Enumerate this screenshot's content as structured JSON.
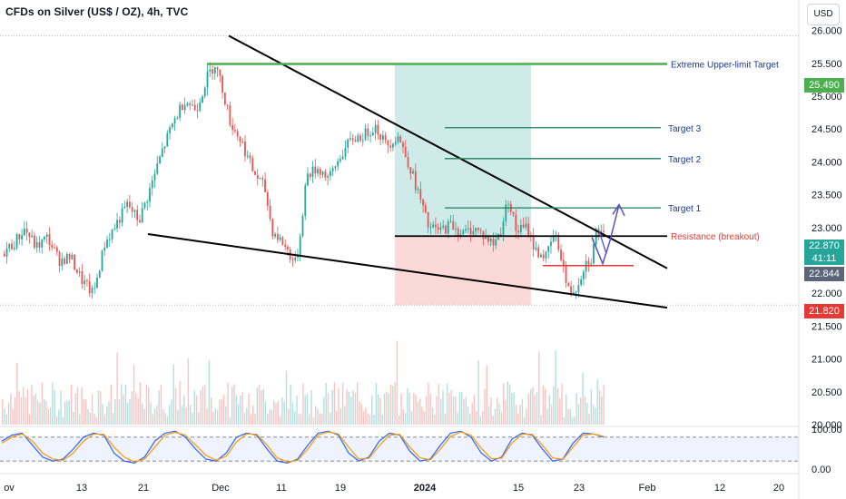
{
  "header": {
    "title": "CFDs on Silver (US$ / OZ), 4h, TVC",
    "currency_button": "USD"
  },
  "colors": {
    "up": "#26a69a",
    "down": "#ef5350",
    "green_line": "#4caf50",
    "target_line": "#1b7f5a",
    "resistance": "#e53935",
    "arrow": "#5b4fc4",
    "oscillator_k": "#2962ff",
    "oscillator_d": "#ff9800"
  },
  "price_badges": {
    "extreme_target": "25.490",
    "current_price": "22.870",
    "countdown": "41:11",
    "current_alt": "22.844",
    "low_marker": "21.820"
  },
  "chart_data": [
    {
      "type": "candlestick",
      "title": "CFDs on Silver (US$ / OZ), 4h, TVC",
      "yaxis": {
        "ticks": [
          "26.000",
          "25.500",
          "25.000",
          "24.500",
          "24.000",
          "23.500",
          "23.000",
          "22.500",
          "22.000",
          "21.500",
          "21.000",
          "20.500",
          "20.000"
        ],
        "range": [
          20.0,
          26.05
        ]
      },
      "xaxis": {
        "ticks": [
          "ov",
          "13",
          "21",
          "Dec",
          "11",
          "19",
          "2024",
          "15",
          "23",
          "Feb",
          "12",
          "20"
        ]
      },
      "price_path": [
        [
          0,
          22.6
        ],
        [
          0.015,
          22.75
        ],
        [
          0.03,
          22.98
        ],
        [
          0.045,
          22.7
        ],
        [
          0.06,
          22.85
        ],
        [
          0.075,
          22.5
        ],
        [
          0.09,
          22.55
        ],
        [
          0.105,
          22.2
        ],
        [
          0.12,
          21.98
        ],
        [
          0.135,
          22.75
        ],
        [
          0.15,
          23.05
        ],
        [
          0.165,
          23.35
        ],
        [
          0.18,
          23.1
        ],
        [
          0.195,
          23.6
        ],
        [
          0.21,
          24.15
        ],
        [
          0.225,
          24.6
        ],
        [
          0.24,
          24.95
        ],
        [
          0.255,
          24.8
        ],
        [
          0.27,
          25.3
        ],
        [
          0.28,
          25.5
        ],
        [
          0.29,
          25.1
        ],
        [
          0.3,
          24.6
        ],
        [
          0.315,
          24.3
        ],
        [
          0.33,
          23.85
        ],
        [
          0.345,
          23.6
        ],
        [
          0.355,
          22.95
        ],
        [
          0.37,
          22.75
        ],
        [
          0.385,
          22.45
        ],
        [
          0.39,
          22.7
        ],
        [
          0.4,
          23.8
        ],
        [
          0.415,
          23.9
        ],
        [
          0.43,
          23.75
        ],
        [
          0.445,
          24.1
        ],
        [
          0.46,
          24.35
        ],
        [
          0.475,
          24.4
        ],
        [
          0.49,
          24.55
        ],
        [
          0.505,
          24.25
        ],
        [
          0.52,
          24.4
        ],
        [
          0.535,
          23.95
        ],
        [
          0.55,
          23.4
        ],
        [
          0.56,
          23.0
        ],
        [
          0.575,
          22.95
        ],
        [
          0.59,
          23.05
        ],
        [
          0.605,
          22.9
        ],
        [
          0.62,
          23.0
        ],
        [
          0.635,
          22.85
        ],
        [
          0.645,
          22.75
        ],
        [
          0.655,
          22.95
        ],
        [
          0.665,
          23.45
        ],
        [
          0.675,
          22.95
        ],
        [
          0.69,
          23.0
        ],
        [
          0.7,
          22.65
        ],
        [
          0.715,
          22.55
        ],
        [
          0.725,
          22.9
        ],
        [
          0.735,
          22.55
        ],
        [
          0.74,
          22.2
        ],
        [
          0.745,
          22.0
        ],
        [
          0.755,
          22.1
        ],
        [
          0.765,
          22.45
        ],
        [
          0.775,
          22.55
        ],
        [
          0.78,
          22.95
        ],
        [
          0.79,
          22.85
        ]
      ],
      "annotations": [
        {
          "label": "Extreme Upper-limit Target",
          "value": 25.49
        },
        {
          "label": "Target 3",
          "value": 24.52
        },
        {
          "label": "Target 2",
          "value": 24.05
        },
        {
          "label": "Target 1",
          "value": 23.3
        },
        {
          "label": "Resistance (breakout)",
          "value": 22.87
        }
      ],
      "trade_zone": {
        "entry": 22.87,
        "target": 25.49,
        "stop": 21.82
      },
      "volume_note": "volume bars shown at bottom of price pane"
    },
    {
      "type": "line",
      "title": "Stochastic oscillator",
      "yaxis": {
        "ticks": [
          "100.00",
          "0.00"
        ],
        "range": [
          0,
          100
        ]
      },
      "bands": [
        80,
        20
      ],
      "series": [
        {
          "values": [
            70,
            85,
            90,
            60,
            30,
            20,
            25,
            50,
            80,
            90,
            85,
            40,
            20,
            15,
            30,
            70,
            90,
            95,
            80,
            50,
            25,
            20,
            40,
            80,
            90,
            85,
            50,
            20,
            15,
            25,
            60,
            90,
            95,
            85,
            40,
            20,
            30,
            70,
            90,
            85,
            45,
            20,
            25,
            60,
            90,
            95,
            80,
            40,
            20,
            30,
            75,
            90,
            85,
            50,
            20,
            25,
            65,
            90,
            88,
            80
          ]
        },
        {
          "values": [
            65,
            80,
            88,
            70,
            40,
            25,
            22,
            40,
            70,
            88,
            87,
            55,
            30,
            18,
            25,
            55,
            85,
            92,
            85,
            60,
            35,
            22,
            32,
            68,
            88,
            87,
            60,
            28,
            18,
            22,
            50,
            85,
            93,
            88,
            55,
            25,
            27,
            58,
            85,
            87,
            55,
            28,
            23,
            50,
            82,
            93,
            85,
            52,
            26,
            27,
            65,
            87,
            87,
            60,
            28,
            24,
            55,
            85,
            88,
            82
          ]
        }
      ]
    }
  ]
}
